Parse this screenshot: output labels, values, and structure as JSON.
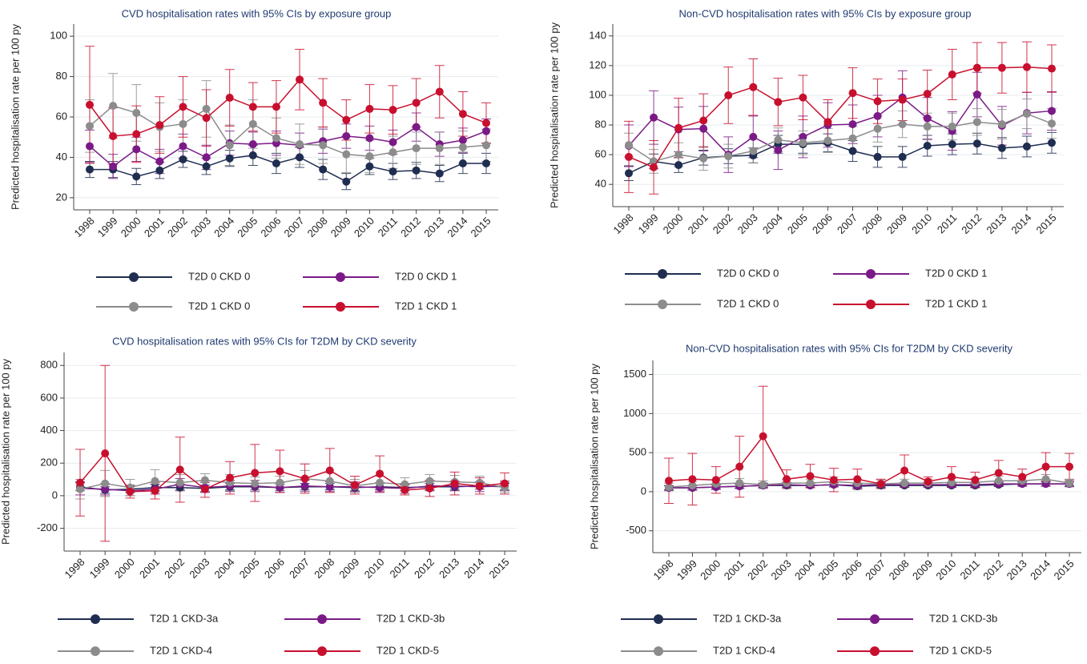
{
  "chart_data": [
    {
      "type": "line",
      "title": "CVD hospitalisation rates with 95% CIs by exposure group",
      "y_label": "Predicted hospitalisation rate per 100 py",
      "categories": [
        "1998",
        "1999",
        "2000",
        "2001",
        "2002",
        "2003",
        "2004",
        "2005",
        "2006",
        "2007",
        "2008",
        "2009",
        "2010",
        "2011",
        "2012",
        "2013",
        "2014",
        "2015"
      ],
      "ylim": [
        14,
        106
      ],
      "yticks": [
        20,
        40,
        60,
        80,
        100
      ],
      "grid": true,
      "series": [
        {
          "name": "T2D 0 CKD 0",
          "color": "#1f2d50",
          "values": [
            34,
            34,
            30.5,
            33.5,
            39,
            35.5,
            39.5,
            41,
            37,
            40,
            34,
            28,
            35.5,
            33,
            33.5,
            32,
            37,
            37
          ],
          "errors": [
            4,
            4,
            4,
            4,
            4,
            4,
            4,
            5,
            5,
            5,
            5,
            4,
            4,
            4,
            4,
            4,
            5,
            5
          ]
        },
        {
          "name": "T2D 0 CKD 1",
          "color": "#7b1a87",
          "values": [
            45.5,
            35.5,
            44,
            38,
            45.5,
            40,
            47,
            46.5,
            47,
            46,
            48,
            50.5,
            49.5,
            47.5,
            55,
            46.5,
            48.5,
            53
          ],
          "errors": [
            8,
            6,
            6,
            6,
            6,
            6,
            6,
            6,
            6,
            6,
            6,
            6,
            6,
            6,
            7,
            6,
            6,
            6
          ]
        },
        {
          "name": "T2D 1 CKD 0",
          "color": "#8c8c8c",
          "values": [
            55.5,
            65.5,
            62,
            55,
            56.5,
            64,
            46,
            56.5,
            49.5,
            46.5,
            46,
            41.5,
            40.5,
            42.5,
            44.5,
            44.5,
            45,
            46
          ],
          "errors": [
            13,
            16,
            14,
            12,
            12,
            14,
            10,
            12,
            10,
            10,
            9,
            9,
            8,
            8,
            8,
            8,
            8,
            8
          ]
        },
        {
          "name": "T2D 1 CKD 1",
          "color": "#c8102e",
          "values": [
            66,
            50.5,
            51.5,
            56,
            65,
            59.5,
            69.5,
            65,
            65,
            78.5,
            67,
            58.5,
            64,
            63.5,
            67,
            72.5,
            61.5,
            57
          ],
          "errors": [
            29,
            14,
            14,
            14,
            15,
            14,
            14,
            12,
            13,
            15,
            12,
            10,
            12,
            12,
            12,
            13,
            11,
            10
          ]
        }
      ]
    },
    {
      "type": "line",
      "title": "Non-CVD hospitalisation rates with 95% CIs by exposure group",
      "y_label": "Predicted hospitalisation rate per 100 py",
      "categories": [
        "1998",
        "1999",
        "2000",
        "2001",
        "2002",
        "2003",
        "2004",
        "2005",
        "2006",
        "2007",
        "2008",
        "2009",
        "2010",
        "2011",
        "2012",
        "2013",
        "2014",
        "2015"
      ],
      "ylim": [
        25,
        148
      ],
      "yticks": [
        40,
        60,
        80,
        100,
        120,
        140
      ],
      "grid": true,
      "series": [
        {
          "name": "T2D 0 CKD 0",
          "color": "#1f2d50",
          "values": [
            47.5,
            55.5,
            53,
            58,
            59,
            59.5,
            67,
            67,
            68,
            62.5,
            58.5,
            58.5,
            66,
            67,
            67.5,
            64.5,
            65.5,
            68
          ],
          "errors": [
            5,
            5,
            5,
            5,
            5,
            5,
            6,
            6,
            6,
            7,
            7,
            7,
            7,
            7,
            7,
            7,
            7,
            7
          ]
        },
        {
          "name": "T2D 0 CKD 1",
          "color": "#7b1a87",
          "values": [
            66,
            85,
            77,
            77.5,
            60,
            72,
            63,
            72,
            80,
            80.5,
            86,
            98.5,
            84.5,
            76,
            100.5,
            79.5,
            88,
            89.5
          ],
          "errors": [
            14,
            18,
            15,
            15,
            12,
            14,
            13,
            14,
            15,
            13,
            14,
            18,
            14,
            13,
            15,
            13,
            14,
            13
          ]
        },
        {
          "name": "T2D 1 CKD 0",
          "color": "#8c8c8c",
          "values": [
            66.5,
            55.5,
            60,
            57.5,
            59,
            62.5,
            70,
            68,
            69.5,
            71,
            77.5,
            80.5,
            79,
            79,
            82,
            80.5,
            87.5,
            81
          ],
          "errors": [
            8,
            8,
            8,
            8,
            8,
            8,
            8,
            8,
            8,
            8,
            9,
            9,
            9,
            9,
            9,
            10,
            10,
            10
          ]
        },
        {
          "name": "T2D 1 CKD 1",
          "color": "#c8102e",
          "values": [
            58.5,
            51.5,
            78,
            83,
            100,
            105.5,
            95.5,
            98.5,
            82,
            101.5,
            96,
            97,
            101,
            114,
            118.5,
            118.5,
            119,
            118
          ],
          "errors": [
            24,
            18,
            20,
            18,
            19,
            19,
            16,
            15,
            15,
            17,
            15,
            14,
            16,
            17,
            17,
            17,
            17,
            16
          ]
        }
      ]
    },
    {
      "type": "line",
      "title": "CVD hospitalisation rates with 95% CIs for T2DM by CKD severity",
      "y_label": "Predicted hospitalisation rate per 100 py",
      "categories": [
        "1998",
        "1999",
        "2000",
        "2001",
        "2002",
        "2003",
        "2004",
        "2005",
        "2006",
        "2007",
        "2008",
        "2009",
        "2010",
        "2011",
        "2012",
        "2013",
        "2014",
        "2015"
      ],
      "ylim": [
        -340,
        880
      ],
      "yticks": [
        -200,
        0,
        200,
        400,
        600,
        800
      ],
      "grid": true,
      "series": [
        {
          "name": "T2D 1 CKD-3a",
          "color": "#1f2d50",
          "values": [
            55,
            35,
            40,
            50,
            50,
            45,
            55,
            55,
            50,
            55,
            55,
            50,
            55,
            50,
            55,
            55,
            60,
            55
          ],
          "errors": [
            25,
            20,
            20,
            20,
            20,
            20,
            20,
            20,
            20,
            20,
            20,
            20,
            20,
            20,
            20,
            20,
            20,
            20
          ]
        },
        {
          "name": "T2D 1 CKD-3b",
          "color": "#7b1a87",
          "values": [
            45,
            40,
            30,
            40,
            70,
            50,
            60,
            60,
            50,
            60,
            55,
            55,
            50,
            45,
            60,
            60,
            55,
            60
          ],
          "errors": [
            40,
            35,
            30,
            30,
            35,
            30,
            35,
            35,
            30,
            35,
            30,
            30,
            30,
            30,
            30,
            30,
            30,
            30
          ]
        },
        {
          "name": "T2D 1 CKD-4",
          "color": "#8c8c8c",
          "values": [
            40,
            75,
            50,
            90,
            80,
            95,
            80,
            75,
            80,
            105,
            90,
            60,
            80,
            70,
            90,
            85,
            80,
            50
          ],
          "errors": [
            60,
            80,
            50,
            70,
            50,
            40,
            50,
            40,
            40,
            50,
            50,
            40,
            40,
            40,
            40,
            40,
            40,
            30
          ]
        },
        {
          "name": "T2D 1 CKD-5",
          "color": "#c8102e",
          "values": [
            80,
            260,
            25,
            30,
            160,
            40,
            110,
            140,
            150,
            105,
            155,
            65,
            135,
            35,
            45,
            75,
            60,
            75
          ],
          "errors": [
            205,
            540,
            40,
            50,
            200,
            50,
            100,
            175,
            130,
            90,
            135,
            55,
            110,
            30,
            50,
            70,
            50,
            65
          ]
        }
      ]
    },
    {
      "type": "line",
      "title": "Non-CVD hospitalisation rates with 95% CIs for T2DM by CKD severity",
      "y_label": "Predicted hospitalisation rate per 100 py",
      "categories": [
        "1998",
        "1999",
        "2000",
        "2001",
        "2002",
        "2003",
        "2004",
        "2005",
        "2006",
        "2007",
        "2008",
        "2009",
        "2010",
        "2011",
        "2012",
        "2013",
        "2014",
        "2015"
      ],
      "ylim": [
        -780,
        1680
      ],
      "yticks": [
        -500,
        0,
        500,
        1000,
        1500
      ],
      "grid": true,
      "series": [
        {
          "name": "T2D 1 CKD-3a",
          "color": "#1f2d50",
          "values": [
            50,
            50,
            60,
            70,
            80,
            80,
            80,
            90,
            70,
            80,
            80,
            80,
            80,
            80,
            90,
            100,
            100,
            100
          ],
          "errors": [
            25,
            25,
            25,
            25,
            25,
            25,
            25,
            25,
            25,
            25,
            25,
            25,
            25,
            25,
            25,
            25,
            25,
            25
          ]
        },
        {
          "name": "T2D 1 CKD-3b",
          "color": "#7b1a87",
          "values": [
            50,
            50,
            60,
            70,
            80,
            90,
            80,
            90,
            80,
            90,
            90,
            90,
            90,
            90,
            100,
            100,
            100,
            100
          ],
          "errors": [
            30,
            30,
            30,
            30,
            30,
            30,
            30,
            30,
            30,
            30,
            30,
            30,
            30,
            30,
            30,
            30,
            30,
            30
          ]
        },
        {
          "name": "T2D 1 CKD-4",
          "color": "#8c8c8c",
          "values": [
            60,
            80,
            100,
            110,
            90,
            110,
            110,
            130,
            110,
            100,
            110,
            110,
            120,
            120,
            140,
            140,
            160,
            110
          ],
          "errors": [
            50,
            50,
            50,
            60,
            50,
            50,
            50,
            60,
            50,
            50,
            50,
            50,
            50,
            50,
            60,
            60,
            60,
            50
          ]
        },
        {
          "name": "T2D 1 CKD-5",
          "color": "#c8102e",
          "values": [
            140,
            160,
            150,
            320,
            710,
            160,
            200,
            150,
            160,
            100,
            270,
            130,
            190,
            150,
            240,
            190,
            320,
            320
          ],
          "errors": [
            290,
            330,
            170,
            390,
            640,
            120,
            150,
            150,
            130,
            60,
            200,
            60,
            130,
            100,
            160,
            100,
            180,
            170
          ]
        }
      ]
    }
  ]
}
